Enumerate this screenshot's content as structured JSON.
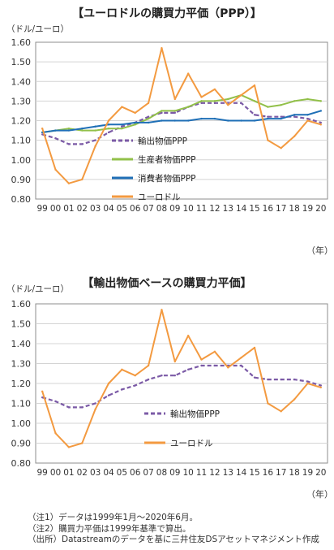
{
  "chart_data": [
    {
      "type": "line",
      "title": "【ユーロドルの購買力平価（PPP）】",
      "ylabel": "（ドル/ユーロ）",
      "xlabel": "（年）",
      "ylim": [
        0.8,
        1.6
      ],
      "yticks": [
        "0.80",
        "0.90",
        "1.00",
        "1.10",
        "1.20",
        "1.30",
        "1.40",
        "1.50",
        "1.60"
      ],
      "categories": [
        "99",
        "00",
        "01",
        "02",
        "03",
        "04",
        "05",
        "06",
        "07",
        "08",
        "09",
        "10",
        "11",
        "12",
        "13",
        "14",
        "15",
        "16",
        "17",
        "18",
        "19",
        "20"
      ],
      "grid": true,
      "legend_position": "center",
      "series": [
        {
          "name": "輸出物価PPP",
          "color": "#7b5aa6",
          "style": "dashed",
          "values": [
            1.13,
            1.11,
            1.08,
            1.08,
            1.1,
            1.14,
            1.17,
            1.19,
            1.22,
            1.24,
            1.24,
            1.27,
            1.29,
            1.29,
            1.29,
            1.29,
            1.23,
            1.22,
            1.22,
            1.22,
            1.21,
            1.19
          ]
        },
        {
          "name": "生産者物価PPP",
          "color": "#92c04a",
          "style": "solid",
          "values": [
            1.14,
            1.15,
            1.16,
            1.15,
            1.15,
            1.16,
            1.16,
            1.18,
            1.21,
            1.25,
            1.25,
            1.27,
            1.3,
            1.3,
            1.31,
            1.33,
            1.3,
            1.27,
            1.28,
            1.3,
            1.31,
            1.3
          ]
        },
        {
          "name": "消費者物価PPP",
          "color": "#1f6fb6",
          "style": "solid",
          "values": [
            1.14,
            1.15,
            1.15,
            1.16,
            1.17,
            1.18,
            1.18,
            1.19,
            1.19,
            1.2,
            1.2,
            1.2,
            1.21,
            1.21,
            1.2,
            1.2,
            1.2,
            1.21,
            1.21,
            1.23,
            1.23,
            1.25
          ]
        },
        {
          "name": "ユーロドル",
          "color": "#f39a40",
          "style": "solid",
          "values": [
            1.16,
            0.95,
            0.88,
            0.9,
            1.07,
            1.2,
            1.27,
            1.24,
            1.29,
            1.57,
            1.31,
            1.44,
            1.32,
            1.36,
            1.28,
            1.33,
            1.38,
            1.1,
            1.06,
            1.12,
            1.2,
            1.18
          ]
        }
      ]
    },
    {
      "type": "line",
      "title": "【輸出物価ベースの購買力平価】",
      "ylabel": "（ドル/ユーロ）",
      "xlabel": "（年）",
      "ylim": [
        0.8,
        1.6
      ],
      "yticks": [
        "0.80",
        "0.90",
        "1.00",
        "1.10",
        "1.20",
        "1.30",
        "1.40",
        "1.50",
        "1.60"
      ],
      "categories": [
        "99",
        "00",
        "01",
        "02",
        "03",
        "04",
        "05",
        "06",
        "07",
        "08",
        "09",
        "10",
        "11",
        "12",
        "13",
        "14",
        "15",
        "16",
        "17",
        "18",
        "19",
        "20"
      ],
      "grid": true,
      "legend_position": "center",
      "series": [
        {
          "name": "輸出物価PPP",
          "color": "#7b5aa6",
          "style": "dashed",
          "values": [
            1.13,
            1.11,
            1.08,
            1.08,
            1.1,
            1.14,
            1.17,
            1.19,
            1.22,
            1.24,
            1.24,
            1.27,
            1.29,
            1.29,
            1.29,
            1.29,
            1.23,
            1.22,
            1.22,
            1.22,
            1.21,
            1.19
          ]
        },
        {
          "name": "ユーロドル",
          "color": "#f39a40",
          "style": "solid",
          "values": [
            1.16,
            0.95,
            0.88,
            0.9,
            1.07,
            1.2,
            1.27,
            1.24,
            1.29,
            1.57,
            1.31,
            1.44,
            1.32,
            1.36,
            1.28,
            1.33,
            1.38,
            1.1,
            1.06,
            1.12,
            1.2,
            1.18
          ]
        }
      ]
    }
  ],
  "notes": [
    "（注1）データは1999年1月～2020年6月。",
    "（注2）購買力平価は1999年基準で算出。",
    "（出所）Datastreamのデータを基に三井住友DSアセットマネジメント作成"
  ]
}
